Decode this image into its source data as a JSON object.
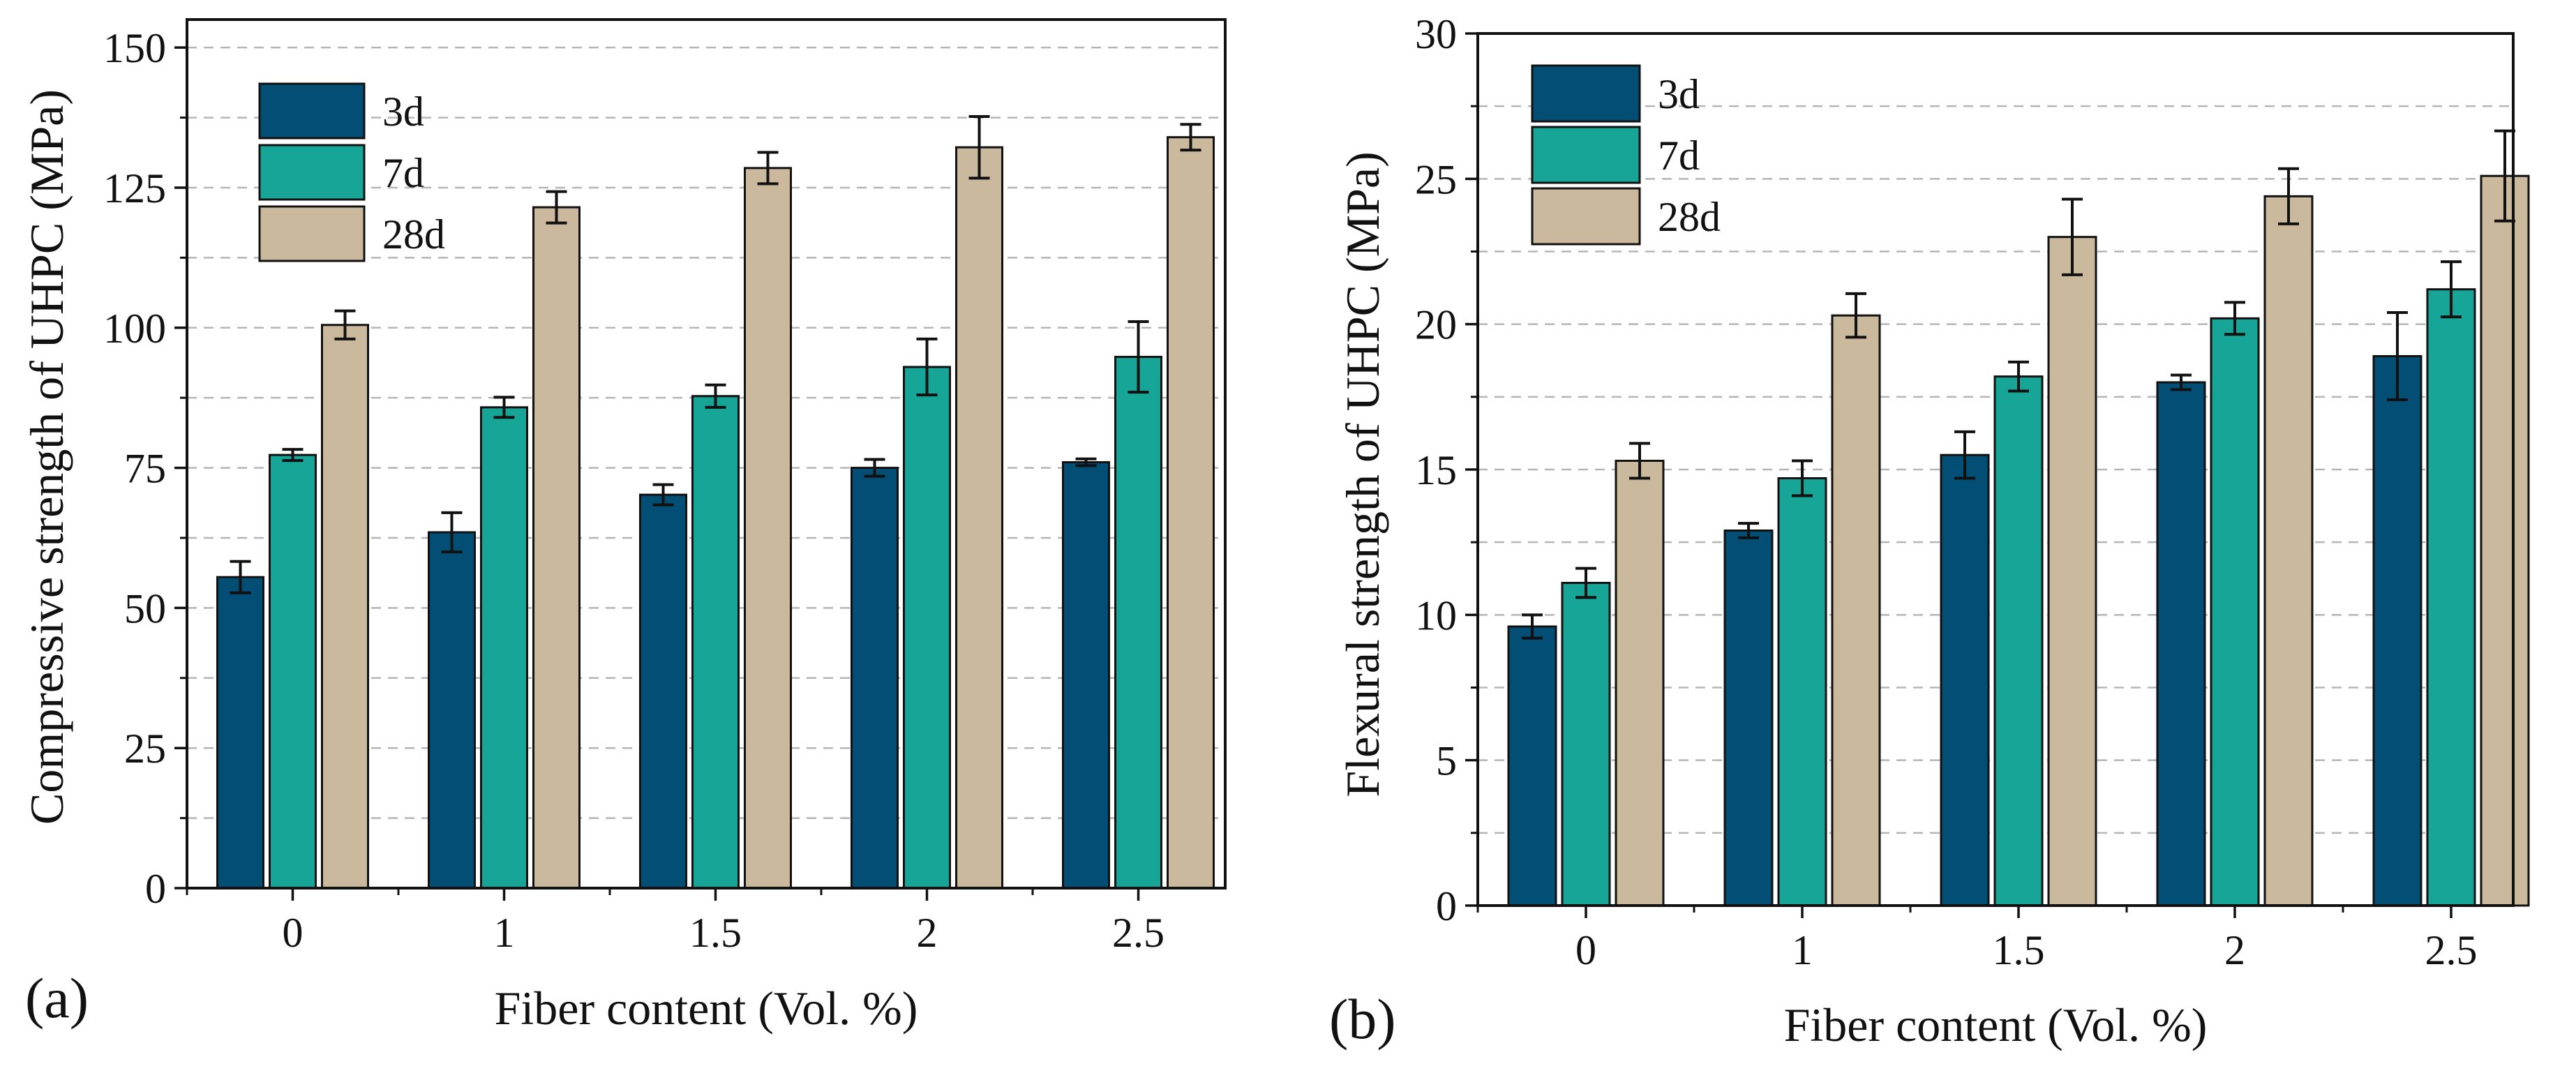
{
  "chart_data": [
    {
      "type": "bar",
      "panel_label": "(a)",
      "xlabel": "Fiber content (Vol. %)",
      "ylabel": "Compressive strength of UHPC (MPa)",
      "categories": [
        "0",
        "1",
        "1.5",
        "2",
        "2.5"
      ],
      "ylim": [
        0,
        155
      ],
      "yticks": [
        "0",
        "25",
        "50",
        "75",
        "100",
        "125",
        "150"
      ],
      "ytick_values": [
        0,
        25,
        50,
        75,
        100,
        125,
        150
      ],
      "minor_gridlines": [
        12.5,
        37.5,
        62.5,
        87.5,
        112.5,
        137.5
      ],
      "grid": true,
      "legend_position": "top-left",
      "series": [
        {
          "name": "3d",
          "color": "#034e75",
          "values": [
            55.5,
            63.5,
            70.2,
            75.0,
            76.0
          ],
          "errors": [
            2.8,
            3.5,
            1.8,
            1.5,
            0.6
          ]
        },
        {
          "name": "7d",
          "color": "#16a596",
          "values": [
            77.3,
            85.8,
            87.8,
            93.0,
            94.8
          ],
          "errors": [
            1.0,
            1.8,
            2.0,
            5.0,
            6.3
          ]
        },
        {
          "name": "28d",
          "color": "#cbb99e",
          "values": [
            100.5,
            121.5,
            128.5,
            132.2,
            134.0
          ],
          "errors": [
            2.5,
            2.8,
            2.8,
            5.5,
            2.3
          ]
        }
      ]
    },
    {
      "type": "bar",
      "panel_label": "(b)",
      "xlabel": "Fiber content (Vol. %)",
      "ylabel": "Flexural strength of UHPC (MPa)",
      "categories": [
        "0",
        "1",
        "1.5",
        "2",
        "2.5"
      ],
      "ylim": [
        0,
        30
      ],
      "yticks": [
        "0",
        "5",
        "10",
        "15",
        "20",
        "25",
        "30"
      ],
      "ytick_values": [
        0,
        5,
        10,
        15,
        20,
        25,
        30
      ],
      "minor_gridlines": [
        2.5,
        7.5,
        12.5,
        17.5,
        22.5,
        27.5
      ],
      "grid": true,
      "legend_position": "top-left",
      "series": [
        {
          "name": "3d",
          "color": "#034e75",
          "values": [
            9.6,
            12.9,
            15.5,
            18.0,
            18.9
          ],
          "errors": [
            0.4,
            0.25,
            0.8,
            0.25,
            1.5
          ]
        },
        {
          "name": "7d",
          "color": "#16a596",
          "values": [
            11.1,
            14.7,
            18.2,
            20.2,
            21.2
          ],
          "errors": [
            0.5,
            0.6,
            0.5,
            0.55,
            0.95
          ]
        },
        {
          "name": "28d",
          "color": "#cbb99e",
          "values": [
            15.3,
            20.3,
            23.0,
            24.4,
            25.1
          ],
          "errors": [
            0.6,
            0.75,
            1.3,
            0.95,
            1.55
          ]
        }
      ]
    }
  ]
}
